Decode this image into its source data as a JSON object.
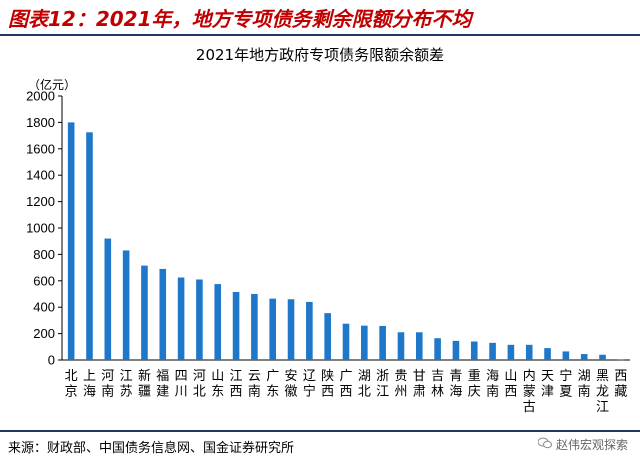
{
  "figure": {
    "title": "图表12：2021年，地方专项债务剩余限额分布不均"
  },
  "footer": {
    "source": "来源：财政部、中国债务信息网、国金证券研究所",
    "watermark": "赵伟宏观探索"
  },
  "colors": {
    "bar": "#1f77c9",
    "title": "#c00000",
    "rule": "#1f3864"
  },
  "chart_data": {
    "type": "bar",
    "title": "2021年地方政府专项债务限额余额差",
    "ylabel": "（亿元）",
    "ylim": [
      0,
      2000
    ],
    "yticks": [
      0,
      200,
      400,
      600,
      800,
      1000,
      1200,
      1400,
      1600,
      1800,
      2000
    ],
    "grid": false,
    "categories": [
      "北京",
      "上海",
      "河南",
      "江苏",
      "新疆",
      "福建",
      "四川",
      "河北",
      "山东",
      "江西",
      "云南",
      "广东",
      "安徽",
      "辽宁",
      "陕西",
      "广西",
      "湖北",
      "浙江",
      "贵州",
      "甘肃",
      "吉林",
      "青海",
      "重庆",
      "海南",
      "山西",
      "内蒙古",
      "天津",
      "宁夏",
      "湖南",
      "黑龙江",
      "西藏"
    ],
    "values": [
      1800,
      1725,
      920,
      830,
      715,
      690,
      625,
      610,
      575,
      515,
      500,
      465,
      460,
      440,
      355,
      275,
      260,
      258,
      210,
      210,
      165,
      145,
      140,
      130,
      115,
      115,
      90,
      65,
      45,
      40,
      5
    ]
  }
}
